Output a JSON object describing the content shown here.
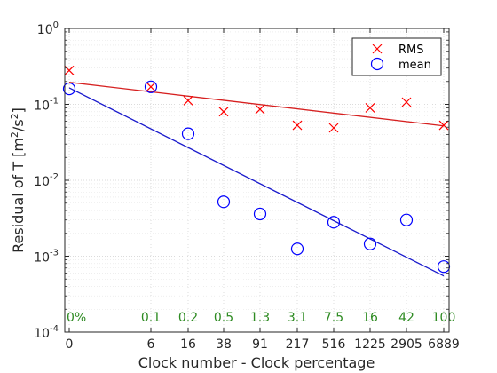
{
  "chart_data": {
    "type": "scatter",
    "x_scale": "categorical",
    "y_scale": "log",
    "xlabel": "Clock number - Clock percentage",
    "ylabel_main": "Residual of T [m",
    "ylabel_sup1": "2",
    "ylabel_mid": "/s",
    "ylabel_sup2": "2",
    "ylabel_end": "]",
    "ylim": [
      0.0001,
      1
    ],
    "grid": true,
    "minor_grid": true,
    "legend_position": "top-right",
    "categories": [
      "0",
      "6",
      "16",
      "38",
      "91",
      "217",
      "516",
      "1225",
      "2905",
      "6889"
    ],
    "percent_labels": [
      "0%",
      "0.1",
      "0.2",
      "0.5",
      "1.3",
      "3.1",
      "7.5",
      "16",
      "42",
      "100"
    ],
    "y_ticks": [
      {
        "base": "10",
        "exp": "0",
        "value": 1
      },
      {
        "base": "10",
        "exp": "-1",
        "value": 0.1
      },
      {
        "base": "10",
        "exp": "-2",
        "value": 0.01
      },
      {
        "base": "10",
        "exp": "-3",
        "value": 0.001
      },
      {
        "base": "10",
        "exp": "-4",
        "value": 0.0001
      }
    ],
    "series": [
      {
        "name": "RMS",
        "marker": "x",
        "color": "#ff0000",
        "values": [
          0.28,
          0.17,
          0.112,
          0.08,
          0.086,
          0.053,
          0.049,
          0.09,
          0.107,
          0.053
        ]
      },
      {
        "name": "mean",
        "marker": "circle",
        "color": "#0000ff",
        "values": [
          0.16,
          0.17,
          0.041,
          0.0052,
          0.0036,
          0.00125,
          0.0028,
          0.00145,
          0.003,
          0.00073
        ]
      }
    ],
    "fit_lines": [
      {
        "series": "RMS",
        "color": "#d62020",
        "start_value": 0.195,
        "end_value": 0.052
      },
      {
        "series": "mean",
        "color": "#1a1acc",
        "start_value": 0.165,
        "end_value": 0.00055
      }
    ],
    "percent_label_color": "#2e8b22"
  }
}
